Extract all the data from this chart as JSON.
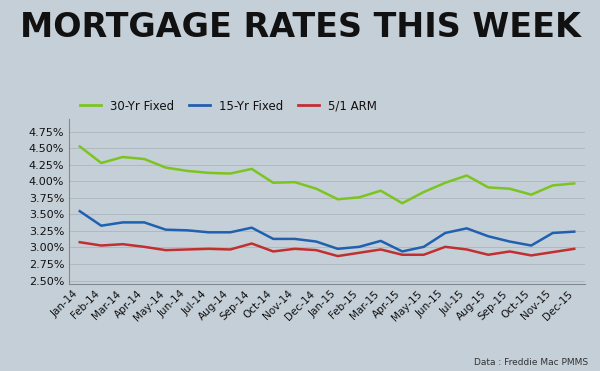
{
  "title": "MORTGAGE RATES THIS WEEK",
  "title_fontsize": 24,
  "title_fontweight": "bold",
  "subtitle": "Data : Freddie Mac PMMS",
  "x_labels": [
    "Jan-14",
    "Feb-14",
    "Mar-14",
    "Apr-14",
    "May-14",
    "Jun-14",
    "Jul-14",
    "Aug-14",
    "Sep-14",
    "Oct-14",
    "Nov-14",
    "Dec-14",
    "Jan-15",
    "Feb-15",
    "Mar-15",
    "Apr-15",
    "May-15",
    "Jun-15",
    "Jul-15",
    "Aug-15",
    "Sep-15",
    "Oct-15",
    "Nov-15",
    "Dec-15"
  ],
  "yticks": [
    2.5,
    2.75,
    3.0,
    3.25,
    3.5,
    3.75,
    4.0,
    4.25,
    4.5,
    4.75
  ],
  "ylim": [
    2.45,
    4.95
  ],
  "series": {
    "30yr": {
      "label": "30-Yr Fixed",
      "color": "#7cc420",
      "linewidth": 1.8,
      "values": [
        4.53,
        4.28,
        4.37,
        4.34,
        4.21,
        4.16,
        4.13,
        4.12,
        4.19,
        3.98,
        3.99,
        3.89,
        3.73,
        3.76,
        3.86,
        3.67,
        3.84,
        3.98,
        4.09,
        3.91,
        3.89,
        3.8,
        3.94,
        3.97
      ]
    },
    "15yr": {
      "label": "15-Yr Fixed",
      "color": "#2060b0",
      "linewidth": 1.8,
      "values": [
        3.55,
        3.33,
        3.38,
        3.38,
        3.27,
        3.26,
        3.23,
        3.23,
        3.3,
        3.13,
        3.13,
        3.09,
        2.98,
        3.01,
        3.1,
        2.94,
        3.01,
        3.22,
        3.29,
        3.17,
        3.09,
        3.03,
        3.22,
        3.24
      ]
    },
    "arm": {
      "label": "5/1 ARM",
      "color": "#c03030",
      "linewidth": 1.8,
      "values": [
        3.08,
        3.03,
        3.05,
        3.01,
        2.96,
        2.97,
        2.98,
        2.97,
        3.06,
        2.94,
        2.98,
        2.96,
        2.87,
        2.92,
        2.97,
        2.89,
        2.89,
        3.01,
        2.97,
        2.89,
        2.94,
        2.88,
        2.93,
        2.98
      ]
    }
  },
  "bg_top": "#c8d4e0",
  "bg_bottom": "#b0bec8",
  "plot_bg_alpha": 0.0,
  "grid_color": "#999999",
  "tick_color": "#111111",
  "tick_fontsize": 7.5,
  "spine_color": "#888888"
}
